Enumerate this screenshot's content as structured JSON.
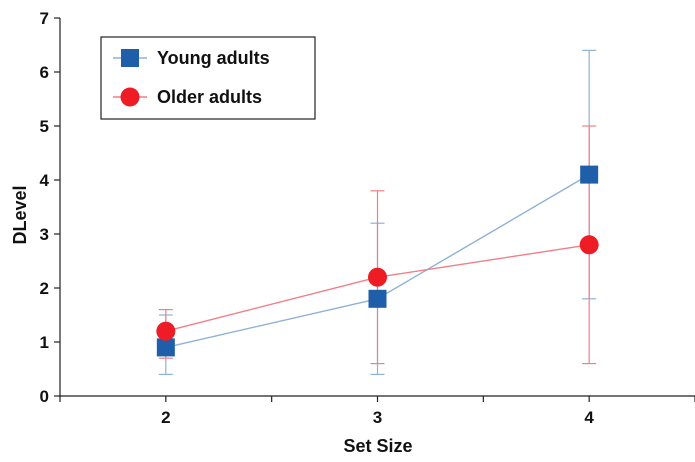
{
  "chart_data": {
    "type": "line",
    "title": "",
    "xlabel": "Set Size",
    "ylabel": "DLevel",
    "categories": [
      "2",
      "3",
      "4"
    ],
    "x": [
      2,
      3,
      4
    ],
    "xlim": [
      1.5,
      4.5
    ],
    "ylim": [
      0,
      7
    ],
    "yticks": [
      0,
      1,
      2,
      3,
      4,
      5,
      6,
      7
    ],
    "grid": false,
    "legend_position": "top-left",
    "series": [
      {
        "name": "Young adults",
        "marker": "square",
        "color": "#1f5ea8",
        "line_color": "#8fb2d6",
        "values": [
          0.9,
          1.8,
          4.1
        ],
        "err_low": [
          0.4,
          0.4,
          1.8
        ],
        "err_high": [
          1.5,
          3.2,
          6.4
        ]
      },
      {
        "name": "Older adults",
        "marker": "circle",
        "color": "#ee1c25",
        "line_color": "#f07f85",
        "values": [
          1.2,
          2.2,
          2.8
        ],
        "err_low": [
          0.7,
          0.6,
          0.6
        ],
        "err_high": [
          1.6,
          3.8,
          5.0
        ]
      }
    ]
  }
}
